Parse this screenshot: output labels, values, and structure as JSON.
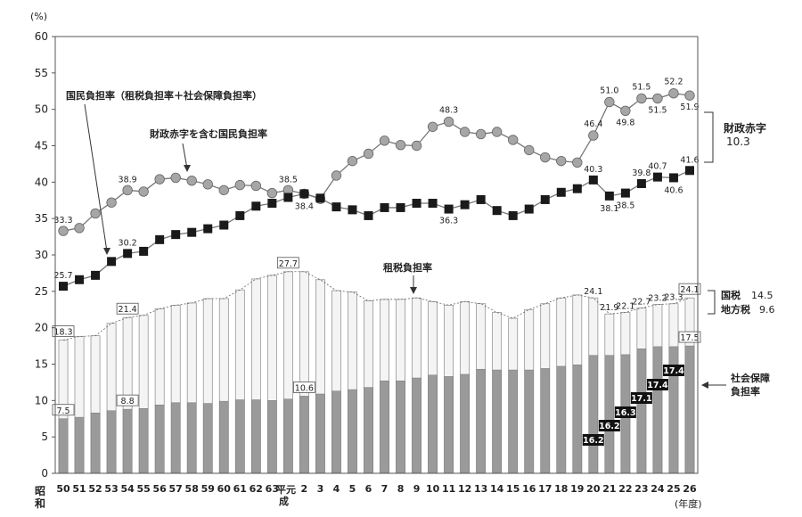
{
  "chart_data": {
    "type": "bar",
    "y_unit": "(%)",
    "ylim": [
      0,
      60
    ],
    "yticks": [
      0,
      5,
      10,
      15,
      20,
      25,
      30,
      35,
      40,
      45,
      50,
      55,
      60
    ],
    "x_unit": "(年度)",
    "era_showa": "昭和",
    "era_heisei": "平元成",
    "x_ticks": [
      "50",
      "51",
      "52",
      "53",
      "54",
      "55",
      "56",
      "57",
      "58",
      "59",
      "60",
      "61",
      "62",
      "63",
      "",
      "2",
      "3",
      "4",
      "5",
      "6",
      "7",
      "8",
      "9",
      "10",
      "11",
      "12",
      "13",
      "14",
      "15",
      "16",
      "17",
      "18",
      "19",
      "20",
      "21",
      "22",
      "23",
      "24",
      "25",
      "26"
    ],
    "series": [
      {
        "name": "財政赤字を含む国民負担率",
        "kind": "line-circle",
        "values": [
          33.3,
          33.7,
          35.7,
          37.2,
          38.9,
          38.7,
          40.4,
          40.6,
          40.2,
          39.7,
          38.9,
          39.6,
          39.5,
          38.5,
          38.9,
          38.4,
          37.7,
          40.9,
          42.9,
          43.9,
          45.7,
          45.1,
          45.0,
          47.6,
          48.3,
          46.9,
          46.6,
          46.9,
          45.8,
          44.4,
          43.4,
          42.9,
          42.7,
          46.4,
          51.0,
          49.8,
          51.5,
          51.5,
          52.2,
          51.9
        ]
      },
      {
        "name": "国民負担率（租税負担率＋社会保障負担率）",
        "kind": "line-square",
        "values": [
          25.7,
          26.6,
          27.2,
          29.1,
          30.2,
          30.5,
          32.1,
          32.8,
          33.1,
          33.6,
          34.1,
          35.4,
          36.7,
          37.1,
          37.9,
          38.4,
          37.8,
          36.6,
          36.2,
          35.4,
          36.5,
          36.5,
          37.1,
          37.1,
          36.3,
          36.9,
          37.6,
          36.1,
          35.4,
          36.3,
          37.6,
          38.6,
          39.1,
          40.3,
          38.1,
          38.5,
          39.8,
          40.7,
          40.6,
          41.6
        ]
      },
      {
        "name": "租税負担率",
        "kind": "bar-total",
        "values": [
          18.3,
          18.8,
          18.9,
          20.6,
          21.4,
          21.7,
          22.6,
          23.1,
          23.4,
          24.0,
          24.0,
          25.2,
          26.7,
          27.2,
          27.7,
          27.7,
          26.6,
          25.1,
          24.9,
          23.7,
          23.9,
          23.9,
          24.1,
          23.6,
          23.1,
          23.6,
          23.3,
          22.1,
          21.3,
          22.5,
          23.3,
          24.1,
          24.5,
          24.1,
          21.9,
          22.1,
          22.7,
          23.2,
          23.3,
          24.1
        ]
      },
      {
        "name": "社会保障負担率",
        "kind": "bar-dark",
        "values": [
          7.5,
          7.7,
          8.3,
          8.6,
          8.8,
          8.9,
          9.4,
          9.7,
          9.7,
          9.6,
          9.9,
          10.1,
          10.1,
          10.0,
          10.2,
          10.6,
          10.9,
          11.3,
          11.5,
          11.8,
          12.7,
          12.7,
          13.1,
          13.5,
          13.3,
          13.6,
          14.3,
          14.2,
          14.2,
          14.2,
          14.4,
          14.7,
          14.9,
          16.2,
          16.2,
          16.3,
          17.1,
          17.4,
          17.4,
          17.5
        ]
      }
    ],
    "labels": {
      "deficit": [
        "33.3",
        "38.9",
        "38.5",
        "48.3",
        "46.4",
        "51.0",
        "49.8",
        "51.5",
        "51.5",
        "52.2",
        "51.9"
      ],
      "burden": [
        "25.7",
        "30.2",
        "38.4",
        "36.3",
        "40.3",
        "38.1",
        "38.5",
        "39.8",
        "40.7",
        "40.6",
        "41.6"
      ],
      "tax": [
        "18.3",
        "21.4",
        "27.7",
        "24.1",
        "21.9",
        "22.1",
        "22.7",
        "23.2",
        "23.3",
        "24.1"
      ],
      "social": [
        "7.5",
        "8.8",
        "10.6",
        "17.5"
      ],
      "social_black": [
        "16.2",
        "16.2",
        "16.3",
        "17.1",
        "17.4",
        "17.4"
      ]
    },
    "annotations": {
      "burden_line": "国民負担率（租税負担率＋社会保障負担率）",
      "deficit_line": "財政赤字を含む国民負担率",
      "tax_bar": "租税負担率",
      "deficit_side_1": "財政赤字",
      "deficit_side_2": "10.3",
      "kokuzei": "国税",
      "kokuzei_val": "14.5",
      "chihou": "地方税",
      "chihou_val": "9.6",
      "social_1": "社会保障",
      "social_2": "負担率"
    },
    "colors": {
      "bar_total": "#f4f4f4",
      "bar_dark": "#9a9a9a",
      "circle": "#a6a6a6",
      "square": "#1a1a1a",
      "line": "#777777"
    }
  }
}
